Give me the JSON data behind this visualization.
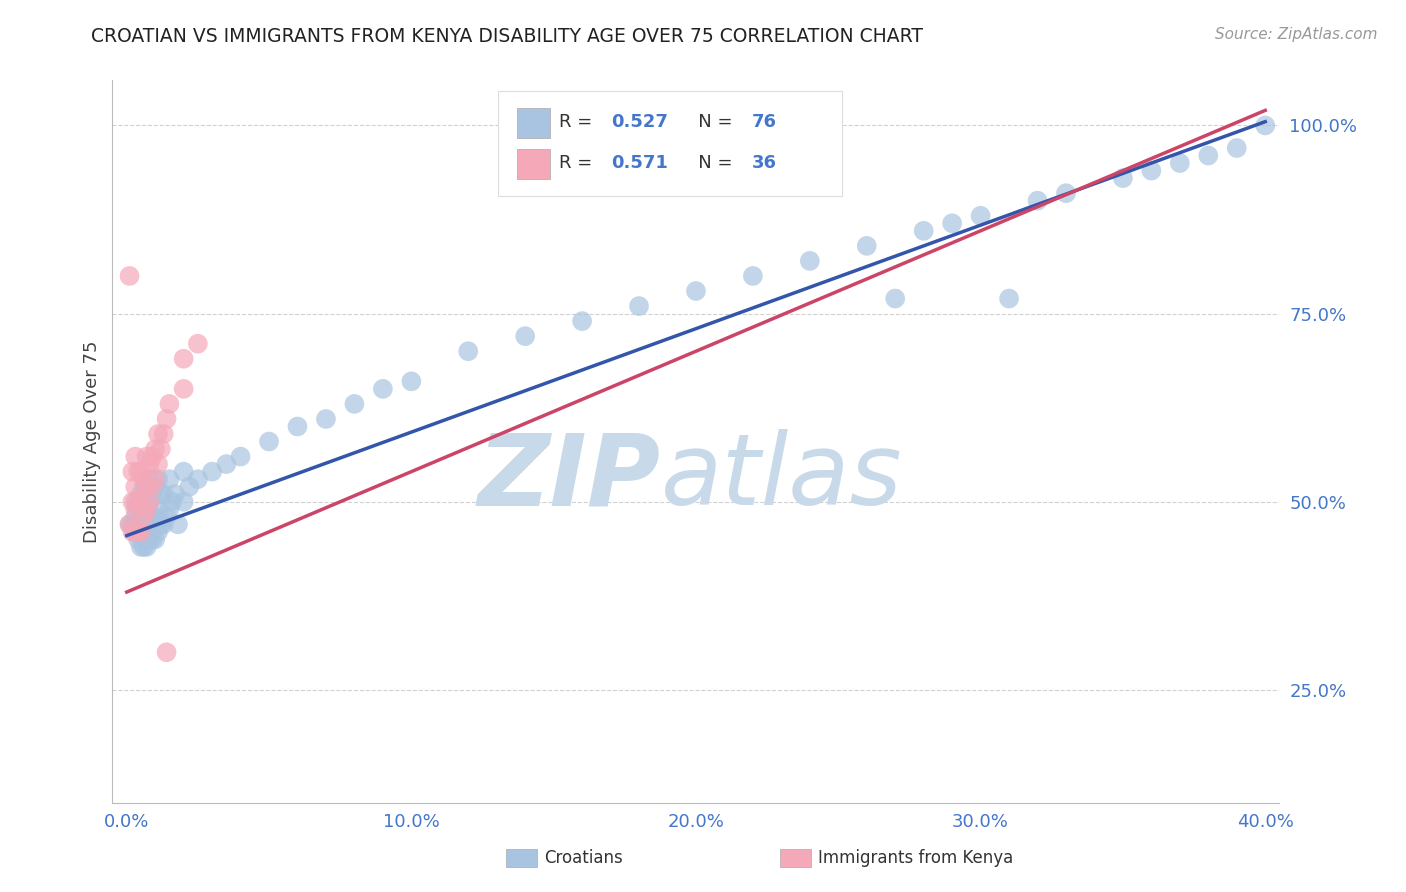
{
  "title": "CROATIAN VS IMMIGRANTS FROM KENYA DISABILITY AGE OVER 75 CORRELATION CHART",
  "source": "Source: ZipAtlas.com",
  "ylabel": "Disability Age Over 75",
  "xlabel_croatian": "Croatians",
  "xlabel_kenya": "Immigrants from Kenya",
  "xlim": [
    -0.005,
    0.405
  ],
  "ylim": [
    0.1,
    1.06
  ],
  "xticks": [
    0.0,
    0.1,
    0.2,
    0.3,
    0.4
  ],
  "xtick_labels": [
    "0.0%",
    "10.0%",
    "20.0%",
    "30.0%",
    "40.0%"
  ],
  "yticks": [
    0.25,
    0.5,
    0.75,
    1.0
  ],
  "ytick_labels": [
    "25.0%",
    "50.0%",
    "75.0%",
    "100.0%"
  ],
  "blue_R": 0.527,
  "blue_N": 76,
  "pink_R": 0.571,
  "pink_N": 36,
  "blue_color": "#a8c4e0",
  "pink_color": "#f4a8b8",
  "blue_line_color": "#3355aa",
  "pink_line_color": "#cc4466",
  "watermark_zip": "ZIP",
  "watermark_atlas": "atlas",
  "watermark_color": "#dce8f0",
  "background_color": "#ffffff",
  "grid_color": "#cccccc",
  "blue_line_x0": 0.0,
  "blue_line_y0": 0.455,
  "blue_line_x1": 0.4,
  "blue_line_y1": 1.005,
  "pink_line_x0": 0.0,
  "pink_line_y0": 0.38,
  "pink_line_x1": 0.4,
  "pink_line_y1": 1.02,
  "blue_scatter_x": [
    0.001,
    0.002,
    0.003,
    0.003,
    0.003,
    0.004,
    0.004,
    0.005,
    0.005,
    0.005,
    0.005,
    0.006,
    0.006,
    0.006,
    0.006,
    0.007,
    0.007,
    0.007,
    0.007,
    0.008,
    0.008,
    0.008,
    0.008,
    0.009,
    0.009,
    0.009,
    0.01,
    0.01,
    0.01,
    0.011,
    0.011,
    0.011,
    0.012,
    0.012,
    0.013,
    0.013,
    0.014,
    0.015,
    0.015,
    0.016,
    0.017,
    0.018,
    0.02,
    0.02,
    0.022,
    0.025,
    0.03,
    0.035,
    0.04,
    0.05,
    0.06,
    0.07,
    0.08,
    0.09,
    0.1,
    0.12,
    0.14,
    0.16,
    0.18,
    0.2,
    0.22,
    0.24,
    0.26,
    0.28,
    0.29,
    0.3,
    0.32,
    0.33,
    0.35,
    0.36,
    0.37,
    0.38,
    0.39,
    0.4,
    0.27,
    0.31
  ],
  "blue_scatter_y": [
    0.47,
    0.47,
    0.46,
    0.48,
    0.5,
    0.45,
    0.49,
    0.44,
    0.46,
    0.48,
    0.51,
    0.44,
    0.46,
    0.49,
    0.52,
    0.44,
    0.46,
    0.49,
    0.52,
    0.45,
    0.47,
    0.5,
    0.53,
    0.45,
    0.48,
    0.51,
    0.45,
    0.48,
    0.52,
    0.46,
    0.49,
    0.53,
    0.47,
    0.51,
    0.47,
    0.51,
    0.48,
    0.49,
    0.53,
    0.5,
    0.51,
    0.47,
    0.5,
    0.54,
    0.52,
    0.53,
    0.54,
    0.55,
    0.56,
    0.58,
    0.6,
    0.61,
    0.63,
    0.65,
    0.66,
    0.7,
    0.72,
    0.74,
    0.76,
    0.78,
    0.8,
    0.82,
    0.84,
    0.86,
    0.87,
    0.88,
    0.9,
    0.91,
    0.93,
    0.94,
    0.95,
    0.96,
    0.97,
    1.0,
    0.77,
    0.77
  ],
  "pink_scatter_x": [
    0.001,
    0.001,
    0.002,
    0.002,
    0.002,
    0.003,
    0.003,
    0.003,
    0.003,
    0.004,
    0.004,
    0.004,
    0.005,
    0.005,
    0.005,
    0.006,
    0.006,
    0.007,
    0.007,
    0.007,
    0.008,
    0.008,
    0.009,
    0.009,
    0.01,
    0.01,
    0.011,
    0.011,
    0.012,
    0.013,
    0.014,
    0.014,
    0.015,
    0.02,
    0.02,
    0.025
  ],
  "pink_scatter_y": [
    0.47,
    0.8,
    0.46,
    0.5,
    0.54,
    0.46,
    0.49,
    0.52,
    0.56,
    0.46,
    0.5,
    0.54,
    0.46,
    0.5,
    0.54,
    0.48,
    0.53,
    0.49,
    0.52,
    0.56,
    0.5,
    0.55,
    0.52,
    0.56,
    0.53,
    0.57,
    0.55,
    0.59,
    0.57,
    0.59,
    0.61,
    0.3,
    0.63,
    0.65,
    0.69,
    0.71
  ]
}
